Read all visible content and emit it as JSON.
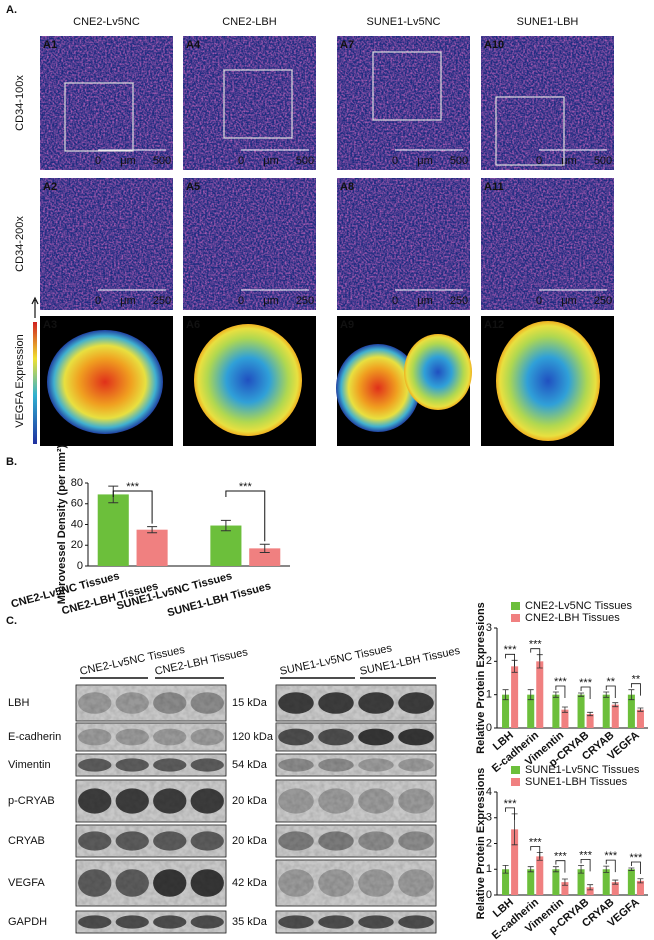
{
  "panel_a": {
    "label": "A.",
    "columns": [
      "CNE2-Lv5NC",
      "CNE2-LBH",
      "SUNE1-Lv5NC",
      "SUNE1-LBH"
    ],
    "rows": [
      "CD34-100x",
      "CD34-200x",
      "VEGFA Expression"
    ],
    "panels": [
      [
        "A1",
        "A4",
        "A7",
        "A10"
      ],
      [
        "A2",
        "A5",
        "A8",
        "A11"
      ],
      [
        "A3",
        "A6",
        "A9",
        "A12"
      ]
    ],
    "scale_bars": [
      {
        "start": 0,
        "unit": "μm",
        "end": 500
      },
      {
        "start": 0,
        "unit": "μm",
        "end": 250
      }
    ]
  },
  "chart_data": [
    {
      "type": "bar",
      "panel_label": "B.",
      "y_label": "Microvessel Density (per mm²)",
      "categories": [
        "CNE2-Lv5NC Tissues",
        "CNE2-LBH Tissues",
        "SUNE1-Lv5NC Tissues",
        "SUNE1-LBH Tissues"
      ],
      "values": [
        69,
        35,
        39,
        17
      ],
      "errors": [
        8,
        3,
        5,
        4
      ],
      "colors": [
        "#6cbf3b",
        "#f08080",
        "#6cbf3b",
        "#f08080"
      ],
      "significance": [
        "***",
        "***"
      ],
      "ylim": [
        0,
        80
      ],
      "yticks": [
        0,
        20,
        40,
        60,
        80
      ]
    },
    {
      "type": "grouped-bar",
      "y_label": "Relative Protein Expressions",
      "categories": [
        "LBH",
        "E-cadherin",
        "Vimentin",
        "p-CRYAB",
        "CRYAB",
        "VEGFA"
      ],
      "series": [
        {
          "name": "CNE2-Lv5NC Tissues",
          "color": "#6cbf3b",
          "values": [
            1,
            1,
            1,
            1,
            1,
            1
          ],
          "errors": [
            0.15,
            0.15,
            0.08,
            0.05,
            0.08,
            0.15
          ]
        },
        {
          "name": "CNE2-LBH Tissues",
          "color": "#f08080",
          "values": [
            1.85,
            2.0,
            0.55,
            0.42,
            0.7,
            0.55
          ],
          "errors": [
            0.18,
            0.2,
            0.08,
            0.05,
            0.06,
            0.05
          ]
        }
      ],
      "significance": [
        "***",
        "***",
        "***",
        "***",
        "**",
        "**"
      ],
      "ylim": [
        0,
        3
      ],
      "yticks": [
        0,
        1,
        2,
        3
      ]
    },
    {
      "type": "grouped-bar",
      "y_label": "Relative Protein Expressions",
      "categories": [
        "LBH",
        "E-cadherin",
        "Vimentin",
        "p-CRYAB",
        "CRYAB",
        "VEGFA"
      ],
      "series": [
        {
          "name": "SUNE1-Lv5NC Tissues",
          "color": "#6cbf3b",
          "values": [
            1,
            1,
            1,
            1,
            1,
            1
          ],
          "errors": [
            0.15,
            0.1,
            0.1,
            0.15,
            0.12,
            0.05
          ]
        },
        {
          "name": "SUNE1-LBH Tissues",
          "color": "#f08080",
          "values": [
            2.55,
            1.5,
            0.5,
            0.3,
            0.5,
            0.55
          ],
          "errors": [
            0.6,
            0.15,
            0.12,
            0.1,
            0.08,
            0.08
          ]
        }
      ],
      "significance": [
        "***",
        "***",
        "***",
        "***",
        "***",
        "***"
      ],
      "ylim": [
        0,
        4
      ],
      "yticks": [
        0,
        1,
        2,
        3,
        4
      ]
    }
  ],
  "panel_c_blot": {
    "label": "C.",
    "groups": [
      "CNE2-Lv5NC Tissues",
      "CNE2-LBH Tissues",
      "SUNE1-Lv5NC Tissues",
      "SUNE1-LBH Tissues"
    ],
    "proteins": [
      "LBH",
      "E-cadherin",
      "Vimentin",
      "p-CRYAB",
      "CRYAB",
      "VEGFA",
      "GAPDH"
    ],
    "weights": [
      "15 kDa",
      "120 kDa",
      "54 kDa",
      "20 kDa",
      "20 kDa",
      "42 kDa",
      "35 kDa"
    ]
  }
}
